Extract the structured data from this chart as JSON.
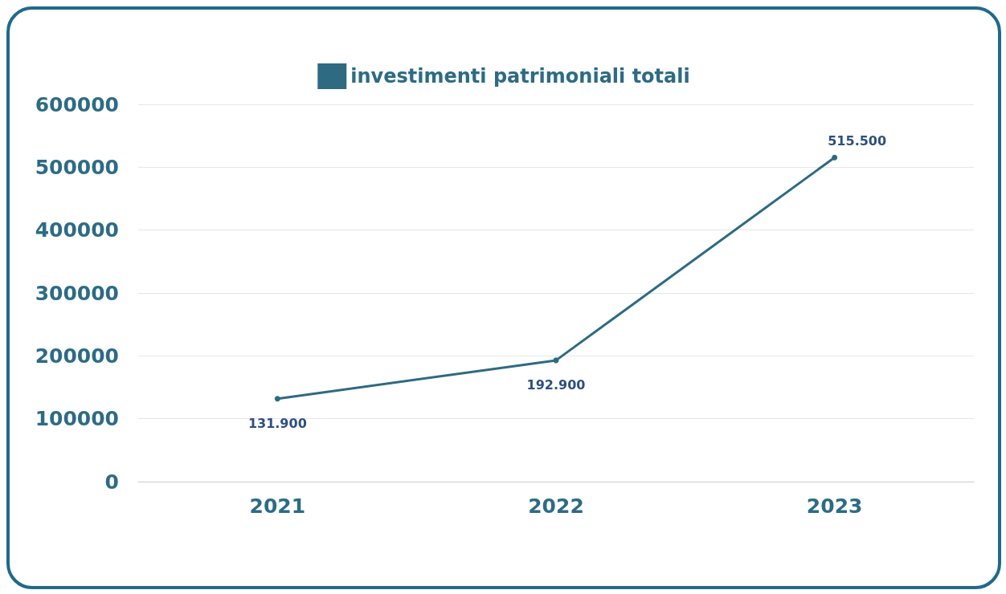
{
  "chart_data": {
    "type": "line",
    "categories": [
      "2021",
      "2022",
      "2023"
    ],
    "series": [
      {
        "name": "investimenti patrimoniali totali",
        "color": "#2e6a82",
        "values": [
          131900,
          192900,
          515500
        ],
        "value_labels": [
          "131.900",
          "192.900",
          "515.500"
        ]
      }
    ],
    "ylim": [
      0,
      600000
    ],
    "yticks": [
      0,
      100000,
      200000,
      300000,
      400000,
      500000,
      600000
    ],
    "grid": "y",
    "legend": "top",
    "marker": "circle",
    "line_style": "solid"
  }
}
